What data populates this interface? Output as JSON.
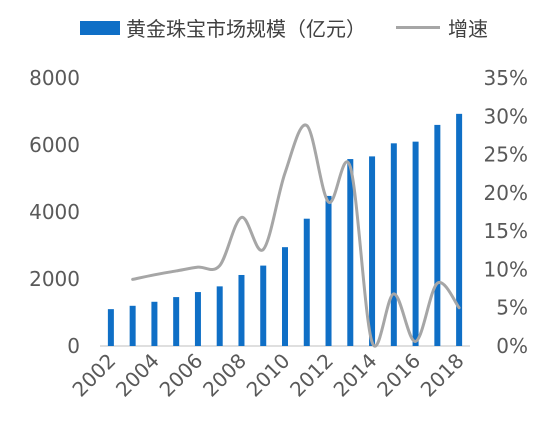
{
  "chart_data": {
    "type": "bar+line",
    "categories": [
      "2002",
      "2003",
      "2004",
      "2005",
      "2006",
      "2007",
      "2008",
      "2009",
      "2010",
      "2011",
      "2012",
      "2013",
      "2014",
      "2015",
      "2016",
      "2017",
      "2018"
    ],
    "xtick_labels": [
      "2002",
      "2004",
      "2006",
      "2008",
      "2010",
      "2012",
      "2014",
      "2016",
      "2018"
    ],
    "series": [
      {
        "name": "黄金珠宝市场规模（亿元）",
        "type": "bar",
        "axis": "left",
        "color": "#0f6fc6",
        "values": [
          1100,
          1200,
          1320,
          1460,
          1610,
          1780,
          2120,
          2400,
          2950,
          3800,
          4480,
          5580,
          5660,
          6050,
          6100,
          6600,
          6930
        ]
      },
      {
        "name": "增速",
        "type": "line",
        "axis": "right",
        "color": "#a6a6a6",
        "x": [
          "2003",
          "2004",
          "2005",
          "2006",
          "2007",
          "2008",
          "2009",
          "2010",
          "2011",
          "2012",
          "2013",
          "2014",
          "2015",
          "2016",
          "2017",
          "2018"
        ],
        "values": [
          8.7,
          9.3,
          9.8,
          10.3,
          10.5,
          16.8,
          12.6,
          22.6,
          28.8,
          18.8,
          23.4,
          0.5,
          6.8,
          0.6,
          8.2,
          5.0
        ]
      }
    ],
    "y_left": {
      "ticks": [
        0,
        2000,
        4000,
        6000,
        8000
      ],
      "labels": [
        "0",
        "2000",
        "4000",
        "6000",
        "8000"
      ],
      "range": [
        0,
        8000
      ]
    },
    "y_right": {
      "ticks": [
        0,
        5,
        10,
        15,
        20,
        25,
        30,
        35
      ],
      "labels": [
        "0%",
        "5%",
        "10%",
        "15%",
        "20%",
        "25%",
        "30%",
        "35%"
      ],
      "range": [
        0,
        35
      ]
    },
    "grid": false,
    "legend_position": "top"
  }
}
